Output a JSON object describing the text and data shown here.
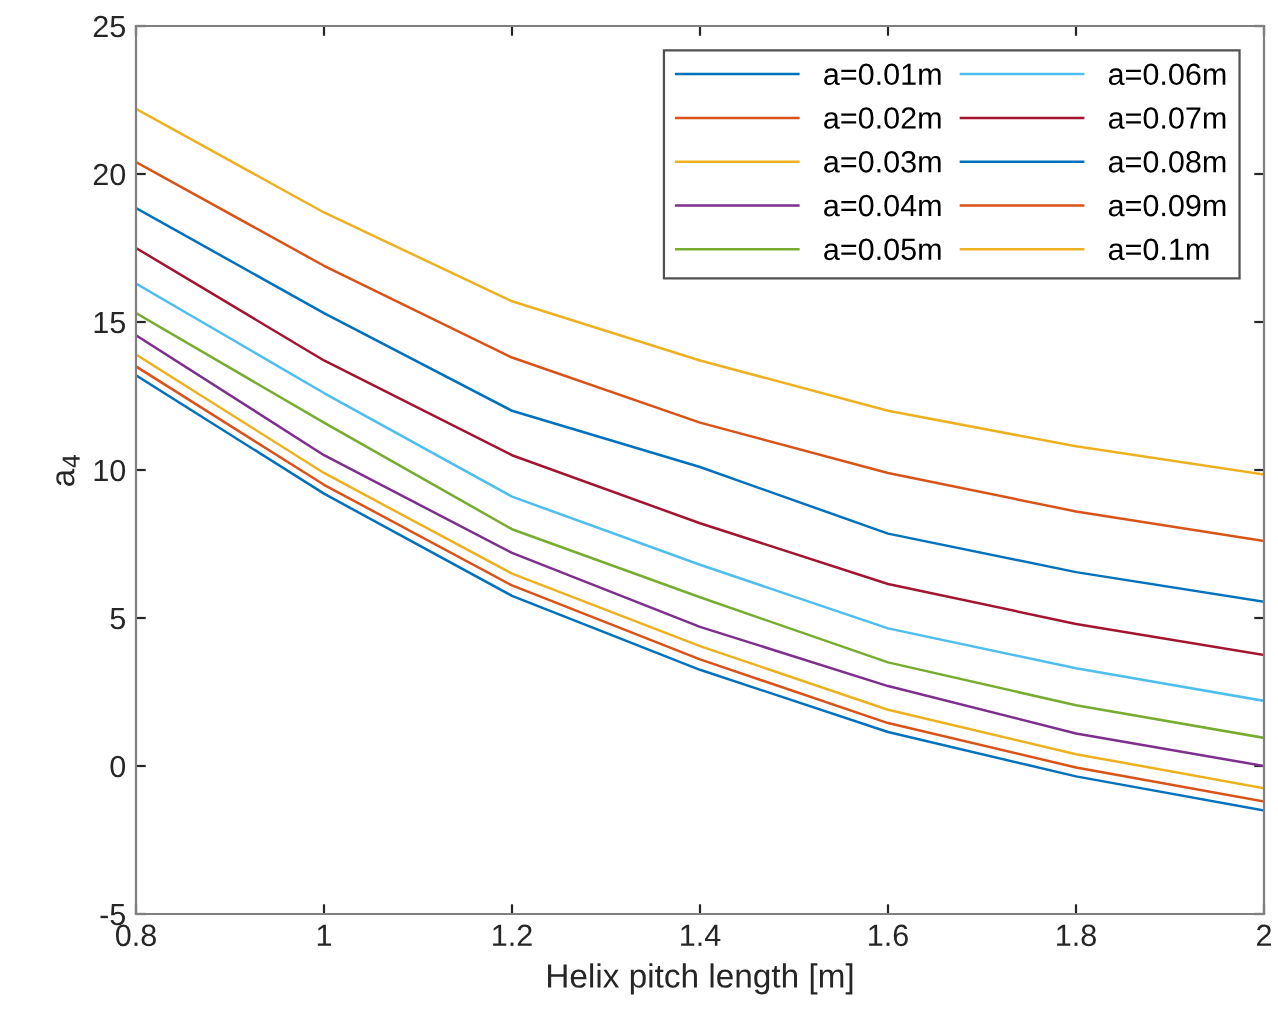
{
  "chart_data": {
    "type": "line",
    "xlabel": "Helix pitch length [m]",
    "ylabel": "a$_{4}$",
    "xlim": [
      0.8,
      2
    ],
    "ylim": [
      -5,
      25
    ],
    "xticks": [
      0.8,
      1,
      1.2,
      1.4,
      1.6,
      1.8,
      2
    ],
    "yticks": [
      -5,
      0,
      5,
      10,
      15,
      20,
      25
    ],
    "grid": false,
    "legend": "top right",
    "x": [
      0.8,
      1.0,
      1.2,
      1.4,
      1.6,
      1.8,
      2.0
    ],
    "series": [
      {
        "name": "a=0.01m",
        "color": "#0072bd",
        "values": [
          13.2,
          9.2,
          5.75,
          3.25,
          1.15,
          -0.35,
          -1.5
        ]
      },
      {
        "name": "a=0.02m",
        "color": "#d95319",
        "values": [
          13.5,
          9.5,
          6.1,
          3.6,
          1.45,
          -0.05,
          -1.2
        ]
      },
      {
        "name": "a=0.03m",
        "color": "#edb120",
        "values": [
          13.9,
          9.9,
          6.5,
          4.05,
          1.9,
          0.4,
          -0.75
        ]
      },
      {
        "name": "a=0.04m",
        "color": "#7e2f8e",
        "values": [
          14.55,
          10.5,
          7.2,
          4.7,
          2.7,
          1.1,
          0.0
        ]
      },
      {
        "name": "a=0.05m",
        "color": "#77ac30",
        "values": [
          15.3,
          11.6,
          8.0,
          5.7,
          3.5,
          2.05,
          0.95
        ]
      },
      {
        "name": "a=0.06m",
        "color": "#4dbeee",
        "values": [
          16.3,
          12.6,
          9.1,
          6.8,
          4.65,
          3.3,
          2.2
        ]
      },
      {
        "name": "a=0.07m",
        "color": "#a2142f",
        "values": [
          17.5,
          13.7,
          10.5,
          8.2,
          6.15,
          4.8,
          3.75
        ]
      },
      {
        "name": "a=0.08m",
        "color": "#0072bd",
        "values": [
          18.85,
          15.3,
          12.0,
          10.1,
          7.85,
          6.55,
          5.55
        ]
      },
      {
        "name": "a=0.09m",
        "color": "#d95319",
        "values": [
          20.4,
          16.9,
          13.8,
          11.6,
          9.9,
          8.6,
          7.6
        ]
      },
      {
        "name": "a=0.1m",
        "color": "#edb120",
        "values": [
          22.2,
          18.7,
          15.7,
          13.7,
          12.0,
          10.8,
          9.85
        ]
      }
    ]
  }
}
